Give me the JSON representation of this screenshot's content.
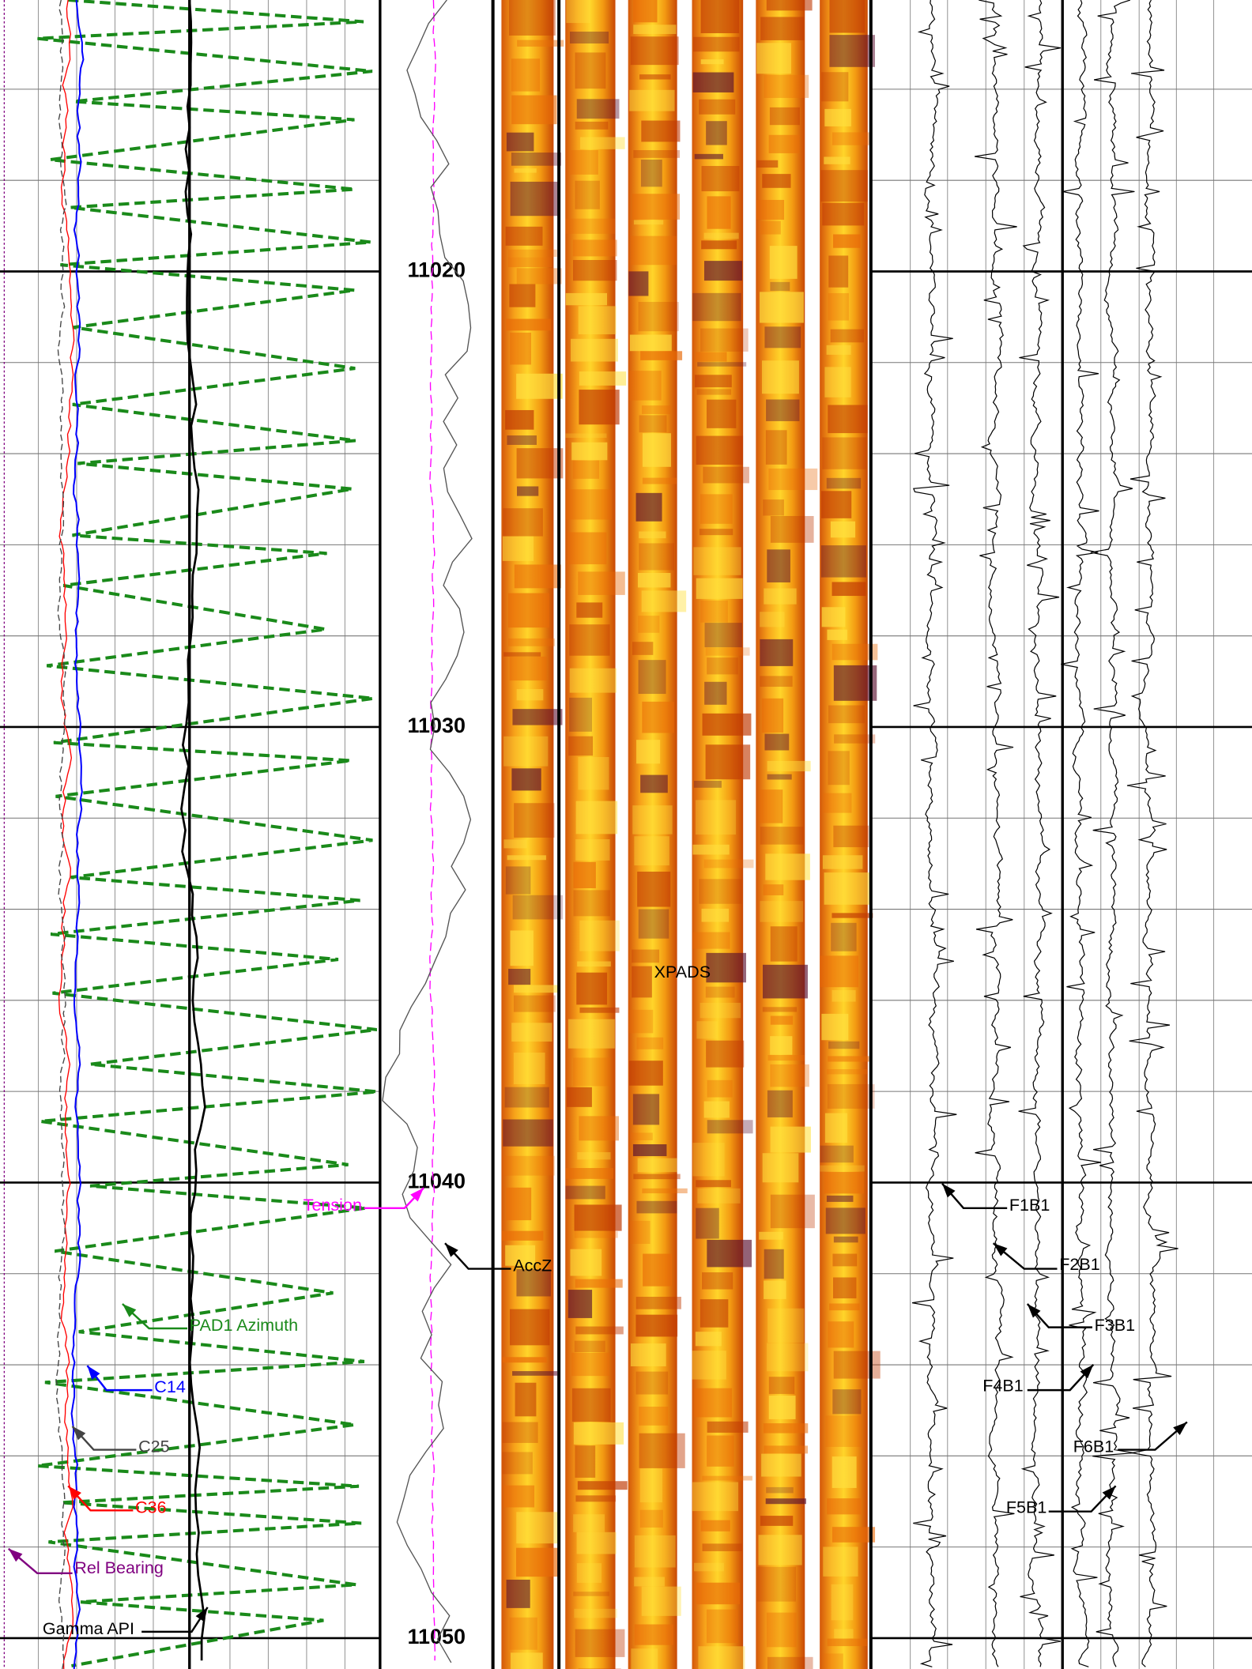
{
  "depth_track": {
    "lim": [
      11014.042,
      11050.678
    ],
    "ticks": [
      11020,
      11030,
      11040,
      11050
    ],
    "minor_ticks": [
      11016,
      11018,
      11022,
      11024,
      11026,
      11028,
      11032,
      11034,
      11036,
      11038,
      11042,
      11044,
      11046,
      11048
    ]
  },
  "image_label": "XPADS",
  "annotations": [
    {
      "text": "Tension",
      "color": "#ff00ff"
    },
    {
      "text": "AccZ",
      "color": "#000000"
    },
    {
      "text": "PAD1 Azimuth",
      "color": "#1a8a1a"
    },
    {
      "text": "C14",
      "color": "#0000ff"
    },
    {
      "text": "C25",
      "color": "#444444"
    },
    {
      "text": "C36",
      "color": "#ff0000"
    },
    {
      "text": "Rel Bearing",
      "color": "#800080"
    },
    {
      "text": "Gamma API",
      "color": "#000000"
    },
    {
      "text": "F1B1",
      "color": "#000000"
    },
    {
      "text": "F2B1",
      "color": "#000000"
    },
    {
      "text": "F3B1",
      "color": "#000000"
    },
    {
      "text": "F4B1",
      "color": "#000000"
    },
    {
      "text": "F6B1",
      "color": "#000000"
    },
    {
      "text": "F5B1",
      "color": "#000000"
    }
  ]
}
